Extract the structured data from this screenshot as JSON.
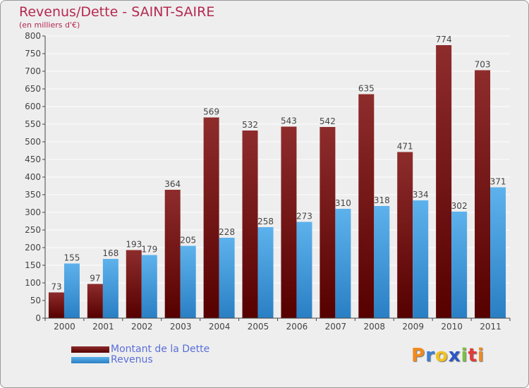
{
  "title": "Revenus/Dette - SAINT-SAIRE",
  "subtitle": "(en milliers d'€)",
  "chart_data": {
    "type": "bar",
    "title": "Revenus/Dette - SAINT-SAIRE",
    "subtitle": "(en milliers d'€)",
    "xlabel": "",
    "ylabel": "",
    "ylim": [
      0,
      800
    ],
    "ytick_step": 50,
    "grid": true,
    "legend_position": "bottom-left",
    "categories": [
      "2000",
      "2001",
      "2002",
      "2003",
      "2004",
      "2005",
      "2006",
      "2007",
      "2008",
      "2009",
      "2010",
      "2011"
    ],
    "series": [
      {
        "name": "Montant de la Dette",
        "color": "#7a1a1a",
        "values": [
          73,
          97,
          193,
          364,
          569,
          532,
          543,
          542,
          635,
          471,
          774,
          703
        ]
      },
      {
        "name": "Revenus",
        "color": "#3a9ee4",
        "values": [
          155,
          168,
          179,
          205,
          228,
          258,
          273,
          310,
          318,
          334,
          302,
          371
        ]
      }
    ]
  },
  "logo": {
    "letters": [
      "P",
      "r",
      "o",
      "x",
      "i",
      "t",
      "i"
    ],
    "colors": [
      "#f28a1e",
      "#3b7fd6",
      "#f2c21e",
      "#2b56c6",
      "#7ac142",
      "#e23a3a",
      "#f28a1e"
    ]
  }
}
